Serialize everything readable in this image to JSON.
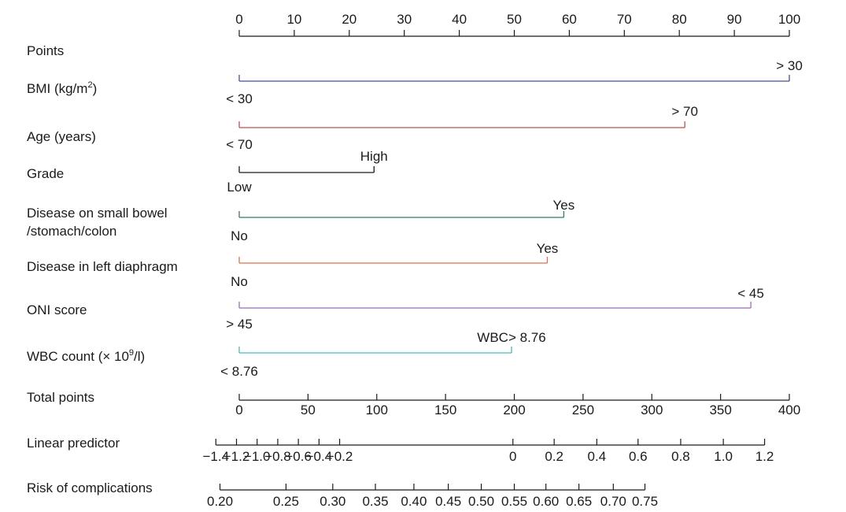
{
  "chart_data": {
    "type": "nomogram",
    "title": "",
    "points_axis": {
      "label": "Points",
      "min": 0,
      "max": 100,
      "ticks": [
        0,
        10,
        20,
        30,
        40,
        50,
        60,
        70,
        80,
        90,
        100
      ],
      "tick_labels": [
        "0",
        "10",
        "20",
        "30",
        "40",
        "50",
        "60",
        "70",
        "80",
        "90",
        "100"
      ]
    },
    "variables": [
      {
        "label": "BMI (kg/m²)",
        "low_label": "< 30",
        "high_label": "> 30",
        "low_points": 0,
        "high_points": 100,
        "color": "#4a4f8a"
      },
      {
        "label": "Age (years)",
        "low_label": "< 70",
        "high_label": "> 70",
        "low_points": 0,
        "high_points": 81,
        "color": "#b85450"
      },
      {
        "label": "Grade",
        "low_label": "Low",
        "high_label": "High",
        "low_points": 0,
        "high_points": 24.5,
        "color": "#1a1a1a"
      },
      {
        "label": "Disease on small bowel\n/stomach/colon",
        "low_label": "No",
        "high_label": "Yes",
        "low_points": 0,
        "high_points": 59,
        "color": "#2e7d5b"
      },
      {
        "label": "Disease in left diaphragm",
        "low_label": "No",
        "high_label": "Yes",
        "low_points": 0,
        "high_points": 56,
        "color": "#d9704a"
      },
      {
        "label": "ONI score",
        "low_label": "> 45",
        "high_label": "< 45",
        "low_points": 0,
        "high_points": 93,
        "color": "#9b6bb5"
      },
      {
        "label": "WBC count (× 10⁹/l)",
        "low_label": "< 8.76",
        "high_label": "WBC> 8.76",
        "low_points": 0,
        "high_points": 49.5,
        "color": "#4db6b6"
      }
    ],
    "total_points_axis": {
      "label": "Total points",
      "min": 0,
      "max": 400,
      "ticks": [
        0,
        50,
        100,
        150,
        200,
        250,
        300,
        350,
        400
      ],
      "tick_labels": [
        "0",
        "50",
        "100",
        "150",
        "200",
        "250",
        "300",
        "350",
        "400"
      ]
    },
    "linear_predictor_axis": {
      "label": "Linear predictor",
      "ticks": [
        -1.4,
        -1.2,
        -1.0,
        -0.8,
        -0.6,
        -0.4,
        -0.2,
        0,
        0.2,
        0.4,
        0.6,
        0.8,
        1.0,
        1.2
      ],
      "tick_labels": [
        "−1.4",
        "−1.2",
        "−1.0",
        "−0.8",
        "−0.6",
        "−0.4",
        "−0.2",
        "0",
        "0.2",
        "0.4",
        "0.6",
        "0.8",
        "1.0",
        "1.2"
      ],
      "total_points_at_ticks": [
        -17,
        -2,
        13,
        28,
        43,
        58,
        73,
        199,
        229,
        260,
        290,
        321,
        352,
        382
      ]
    },
    "risk_axis": {
      "label": "Risk of complications",
      "ticks": [
        0.2,
        0.25,
        0.3,
        0.35,
        0.4,
        0.45,
        0.5,
        0.55,
        0.6,
        0.65,
        0.7,
        0.75
      ],
      "tick_labels": [
        "0.20",
        "0.25",
        "0.30",
        "0.35",
        "0.40",
        "0.45",
        "0.50",
        "0.55",
        "0.60",
        "0.65",
        "0.70",
        "0.75"
      ],
      "total_points_at_ticks": [
        -14,
        34,
        68,
        99,
        127,
        152,
        176,
        200,
        223,
        247,
        272,
        295
      ]
    }
  }
}
